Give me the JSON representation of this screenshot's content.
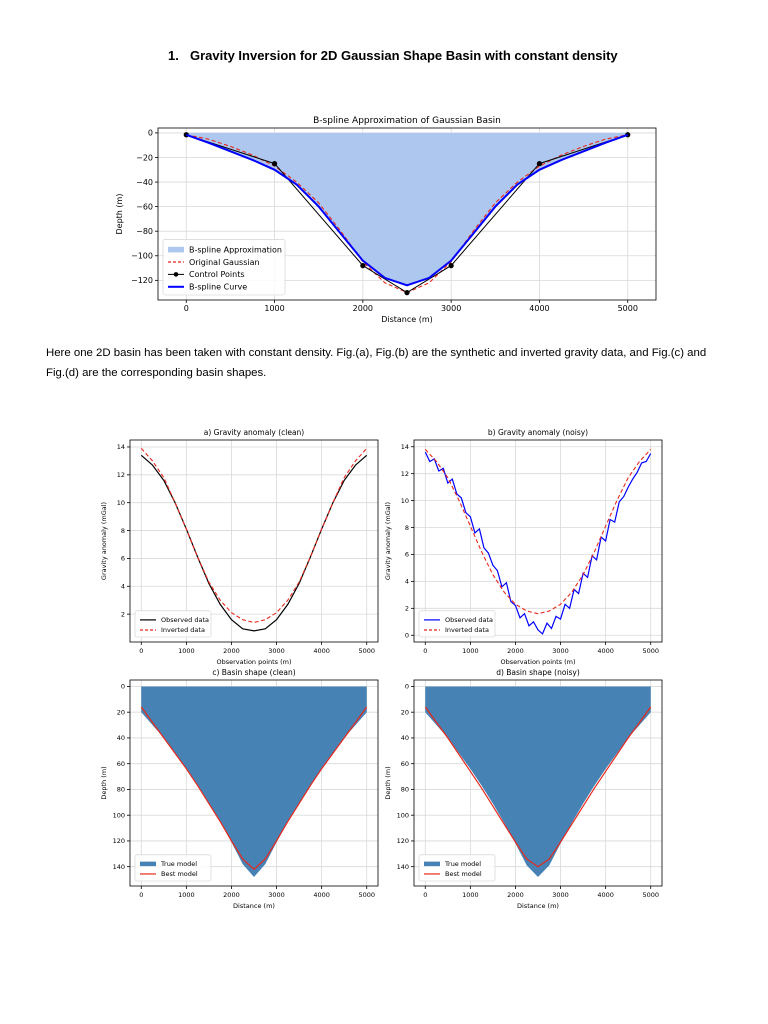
{
  "heading": {
    "number": "1.",
    "title": "Gravity Inversion for 2D Gaussian Shape Basin with constant density"
  },
  "paragraph": "Here one 2D basin has been taken with constant density.  Fig.(a), Fig.(b) are the synthetic and inverted gravity data, and Fig.(c) and Fig.(d) are the corresponding basin shapes.",
  "colors": {
    "fill_light": "#aec7ef",
    "fill_dark": "#4682b4",
    "red": "#e8281c",
    "blue": "#0000ff",
    "black": "#000000",
    "grid": "#d9d9d9"
  },
  "chart_data": [
    {
      "id": "bspline",
      "type": "area",
      "title": "B-spline Approximation of Gaussian Basin",
      "xlabel": "Distance (m)",
      "ylabel": "Depth (m)",
      "xlim": [
        -320,
        5320
      ],
      "ylim": [
        -136,
        4
      ],
      "xticks": [
        0,
        1000,
        2000,
        3000,
        4000,
        5000
      ],
      "yticks": [
        0,
        -20,
        -40,
        -60,
        -80,
        -100,
        -120
      ],
      "grid": true,
      "legend_position": "lower-left",
      "x": [
        0,
        250,
        500,
        750,
        1000,
        1250,
        1500,
        1750,
        2000,
        2250,
        2500,
        2750,
        3000,
        3250,
        3500,
        3750,
        4000,
        4250,
        4500,
        4750,
        5000
      ],
      "series": [
        {
          "name": "B-spline Approximation",
          "style": "fill",
          "color": "#aec7ef",
          "values": [
            -1.5,
            -8,
            -15,
            -22,
            -30,
            -42,
            -60,
            -82,
            -104,
            -118,
            -124,
            -118,
            -104,
            -82,
            -60,
            -42,
            -30,
            -22,
            -15,
            -8,
            -1.5
          ]
        },
        {
          "name": "Original Gaussian",
          "style": "dashed",
          "color": "#e8281c",
          "values": [
            -1.5,
            -5,
            -11,
            -18,
            -27,
            -40,
            -57,
            -80,
            -105,
            -122,
            -130,
            -122,
            -105,
            -80,
            -57,
            -40,
            -27,
            -18,
            -11,
            -5,
            -1.5
          ]
        },
        {
          "name": "Control Points",
          "style": "markers",
          "color": "#000000",
          "x": [
            0,
            1000,
            2000,
            2500,
            3000,
            4000,
            5000
          ],
          "values": [
            -1.5,
            -25,
            -108,
            -130,
            -108,
            -25,
            -1.5
          ]
        },
        {
          "name": "B-spline Curve",
          "style": "line",
          "color": "#0000ff",
          "values": [
            -1.5,
            -8,
            -15,
            -22,
            -30,
            -42,
            -60,
            -82,
            -104,
            -118,
            -124,
            -118,
            -104,
            -82,
            -60,
            -42,
            -30,
            -22,
            -15,
            -8,
            -1.5
          ]
        }
      ]
    },
    {
      "id": "a",
      "type": "line",
      "title": "a) Gravity anomaly (clean)",
      "xlabel": "Observation points (m)",
      "ylabel": "Gravity anomaly (mGal)",
      "xlim": [
        -250,
        5250
      ],
      "ylim": [
        0,
        14.5
      ],
      "xticks": [
        0,
        1000,
        2000,
        3000,
        4000,
        5000
      ],
      "yticks": [
        2,
        4,
        6,
        8,
        10,
        12,
        14
      ],
      "grid": true,
      "legend_position": "lower-left",
      "x": [
        0,
        250,
        500,
        750,
        1000,
        1250,
        1500,
        1750,
        2000,
        2250,
        2500,
        2750,
        3000,
        3250,
        3500,
        3750,
        4000,
        4250,
        4500,
        4750,
        5000
      ],
      "series": [
        {
          "name": "Observed data",
          "style": "line",
          "color": "#000000",
          "values": [
            13.4,
            12.7,
            11.6,
            10.0,
            8.1,
            6.1,
            4.2,
            2.7,
            1.6,
            0.95,
            0.8,
            0.95,
            1.6,
            2.7,
            4.2,
            6.1,
            8.1,
            10.0,
            11.6,
            12.7,
            13.4
          ]
        },
        {
          "name": "Inverted data",
          "style": "dashed",
          "color": "#e8281c",
          "values": [
            13.9,
            13.0,
            11.8,
            10.0,
            8.1,
            6.1,
            4.3,
            3.0,
            2.1,
            1.6,
            1.4,
            1.6,
            2.1,
            3.0,
            4.3,
            6.1,
            8.1,
            10.0,
            11.8,
            13.0,
            13.9
          ]
        }
      ]
    },
    {
      "id": "b",
      "type": "line",
      "title": "b) Gravity anomaly (noisy)",
      "xlabel": "Observation points (m)",
      "ylabel": "Gravity anomaly (mGal)",
      "xlim": [
        -250,
        5250
      ],
      "ylim": [
        -0.5,
        14.5
      ],
      "xticks": [
        0,
        1000,
        2000,
        3000,
        4000,
        5000
      ],
      "yticks": [
        0,
        2,
        4,
        6,
        8,
        10,
        12,
        14
      ],
      "grid": true,
      "legend_position": "lower-left",
      "x": [
        0,
        100,
        200,
        300,
        400,
        500,
        600,
        700,
        800,
        900,
        1000,
        1100,
        1200,
        1300,
        1400,
        1500,
        1600,
        1700,
        1800,
        1900,
        2000,
        2100,
        2200,
        2300,
        2400,
        2500,
        2600,
        2700,
        2800,
        2900,
        3000,
        3100,
        3200,
        3300,
        3400,
        3500,
        3600,
        3700,
        3800,
        3900,
        4000,
        4100,
        4200,
        4300,
        4400,
        4500,
        4600,
        4700,
        4800,
        4900,
        5000
      ],
      "series": [
        {
          "name": "Observed data",
          "style": "line",
          "color": "#0000ff",
          "values": [
            13.6,
            12.9,
            13.1,
            12.2,
            12.4,
            11.3,
            11.6,
            10.5,
            10.2,
            9.1,
            8.8,
            7.6,
            7.9,
            6.5,
            6.1,
            5.2,
            4.8,
            3.6,
            3.9,
            2.5,
            2.2,
            1.3,
            1.6,
            0.7,
            1.0,
            0.4,
            0.1,
            0.9,
            0.5,
            1.4,
            1.2,
            2.3,
            2.0,
            3.4,
            3.1,
            4.6,
            4.3,
            5.9,
            5.6,
            7.3,
            7.0,
            8.6,
            8.4,
            9.9,
            10.3,
            11.0,
            11.6,
            12.1,
            12.8,
            12.9,
            13.5
          ]
        },
        {
          "name": "Inverted data",
          "style": "dashed",
          "color": "#e8281c",
          "x": [
            0,
            250,
            500,
            750,
            1000,
            1250,
            1500,
            1750,
            2000,
            2250,
            2500,
            2750,
            3000,
            3250,
            3500,
            3750,
            4000,
            4250,
            4500,
            4750,
            5000
          ],
          "values": [
            13.8,
            12.9,
            11.7,
            10.0,
            8.1,
            6.2,
            4.5,
            3.2,
            2.3,
            1.8,
            1.6,
            1.8,
            2.3,
            3.2,
            4.5,
            6.2,
            8.1,
            10.0,
            11.7,
            12.9,
            13.8
          ]
        }
      ]
    },
    {
      "id": "c",
      "type": "area",
      "title": "c) Basin shape (clean)",
      "xlabel": "Distance (m)",
      "ylabel": "Depth (m)",
      "xlim": [
        -250,
        5250
      ],
      "ylim": [
        -5,
        155
      ],
      "y_inverted": true,
      "xticks": [
        0,
        1000,
        2000,
        3000,
        4000,
        5000
      ],
      "yticks": [
        0,
        20,
        40,
        60,
        80,
        100,
        120,
        140
      ],
      "grid": true,
      "legend_position": "lower-left",
      "x": [
        0,
        250,
        500,
        750,
        1000,
        1250,
        1500,
        1750,
        2000,
        2250,
        2500,
        2750,
        3000,
        3250,
        3500,
        3750,
        4000,
        4250,
        4500,
        4750,
        5000
      ],
      "series": [
        {
          "name": "True model",
          "style": "fill",
          "color": "#4682b4",
          "values": [
            20,
            30,
            40,
            52,
            64,
            77,
            91,
            105,
            121,
            138,
            148,
            138,
            121,
            105,
            91,
            77,
            64,
            52,
            40,
            30,
            20
          ]
        },
        {
          "name": "Best model",
          "style": "line",
          "color": "#e8281c",
          "values": [
            16,
            28,
            40,
            52,
            64,
            77,
            91,
            105,
            120,
            134,
            142,
            134,
            120,
            105,
            91,
            77,
            64,
            52,
            40,
            28,
            16
          ]
        }
      ]
    },
    {
      "id": "d",
      "type": "area",
      "title": "d) Basin shape (noisy)",
      "xlabel": "Distance (m)",
      "ylabel": "Depth (m)",
      "xlim": [
        -250,
        5250
      ],
      "ylim": [
        -5,
        155
      ],
      "y_inverted": true,
      "xticks": [
        0,
        1000,
        2000,
        3000,
        4000,
        5000
      ],
      "yticks": [
        0,
        20,
        40,
        60,
        80,
        100,
        120,
        140
      ],
      "grid": true,
      "legend_position": "lower-left",
      "x": [
        0,
        250,
        500,
        750,
        1000,
        1250,
        1500,
        1750,
        2000,
        2250,
        2500,
        2750,
        3000,
        3250,
        3500,
        3750,
        4000,
        4250,
        4500,
        4750,
        5000
      ],
      "series": [
        {
          "name": "True model",
          "style": "fill",
          "color": "#4682b4",
          "values": [
            20,
            30,
            40,
            52,
            64,
            77,
            91,
            106,
            122,
            139,
            148,
            139,
            122,
            106,
            91,
            77,
            64,
            52,
            40,
            30,
            20
          ]
        },
        {
          "name": "Best model",
          "style": "line",
          "color": "#e8281c",
          "values": [
            16,
            28,
            40,
            53,
            66,
            79,
            93,
            107,
            121,
            134,
            140,
            134,
            121,
            107,
            93,
            79,
            66,
            53,
            40,
            28,
            16
          ]
        }
      ]
    }
  ]
}
